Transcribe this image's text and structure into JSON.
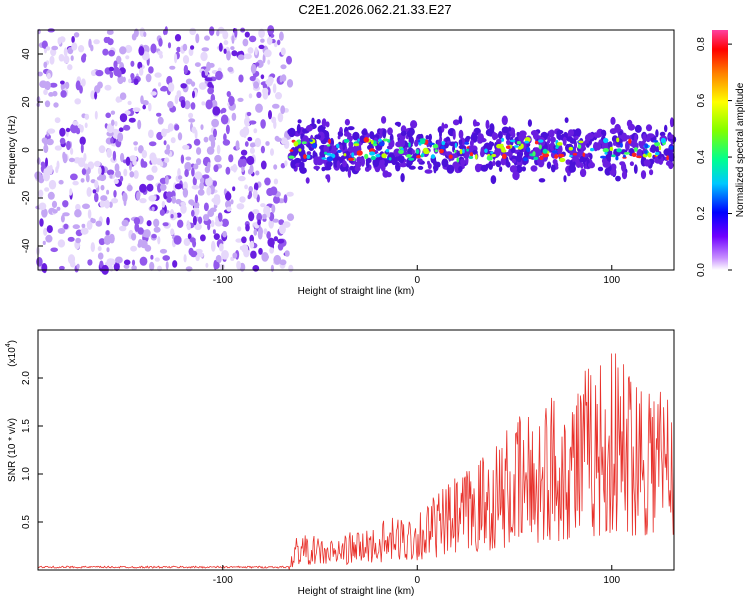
{
  "title": "C2E1.2026.062.21.33.E27",
  "colors": {
    "snr_line": "#e8302a",
    "spec_points": "#7a2ae6"
  },
  "chart_data": [
    {
      "type": "heatmap",
      "name": "spectrogram",
      "xlabel": "Height of straight line (km)",
      "ylabel": "Frequency (Hz)",
      "xlim": [
        -195,
        132
      ],
      "ylim": [
        -50,
        50
      ],
      "xticks": [
        -100,
        0,
        100
      ],
      "xtick_labels": [
        "-100",
        "0",
        "100"
      ],
      "yticks": [
        -40,
        -20,
        0,
        20,
        40
      ],
      "ytick_labels": [
        "-40",
        "-20",
        "0",
        "20",
        "40"
      ],
      "noise_region_x": [
        -195,
        -65
      ],
      "signal_region_x": [
        -65,
        132
      ],
      "signal_center_hz": 0,
      "signal_halfwidth_hz": 8,
      "colorbar": {
        "label": "Normalized spectral amplitude",
        "range": [
          0.0,
          0.85
        ],
        "ticks": [
          0.0,
          0.2,
          0.4,
          0.6,
          0.8
        ],
        "tick_labels": [
          "0.0",
          "0.2",
          "0.4",
          "0.6",
          "0.8"
        ]
      }
    },
    {
      "type": "line",
      "name": "snr",
      "xlabel": "Height of straight line (km)",
      "ylabel": "SNR (10 * v/v)",
      "y_scale_label": "(x10",
      "y_scale_exponent": "4",
      "y_scale_suffix": ")",
      "xlim": [
        -195,
        132
      ],
      "ylim": [
        0,
        2.5
      ],
      "xticks": [
        -100,
        0,
        100
      ],
      "xtick_labels": [
        "-100",
        "0",
        "100"
      ],
      "yticks": [
        0.5,
        1.0,
        1.5,
        2.0
      ],
      "ytick_labels": [
        "0.5",
        "1.0",
        "1.5",
        "2.0"
      ],
      "envelope": {
        "x": [
          -195,
          -66,
          -62,
          -45,
          -20,
          0,
          20,
          40,
          60,
          80,
          100,
          120,
          132
        ],
        "y": [
          0.02,
          0.02,
          0.3,
          0.25,
          0.38,
          0.5,
          0.75,
          1.05,
          1.35,
          1.6,
          1.8,
          1.75,
          1.55
        ]
      }
    }
  ]
}
